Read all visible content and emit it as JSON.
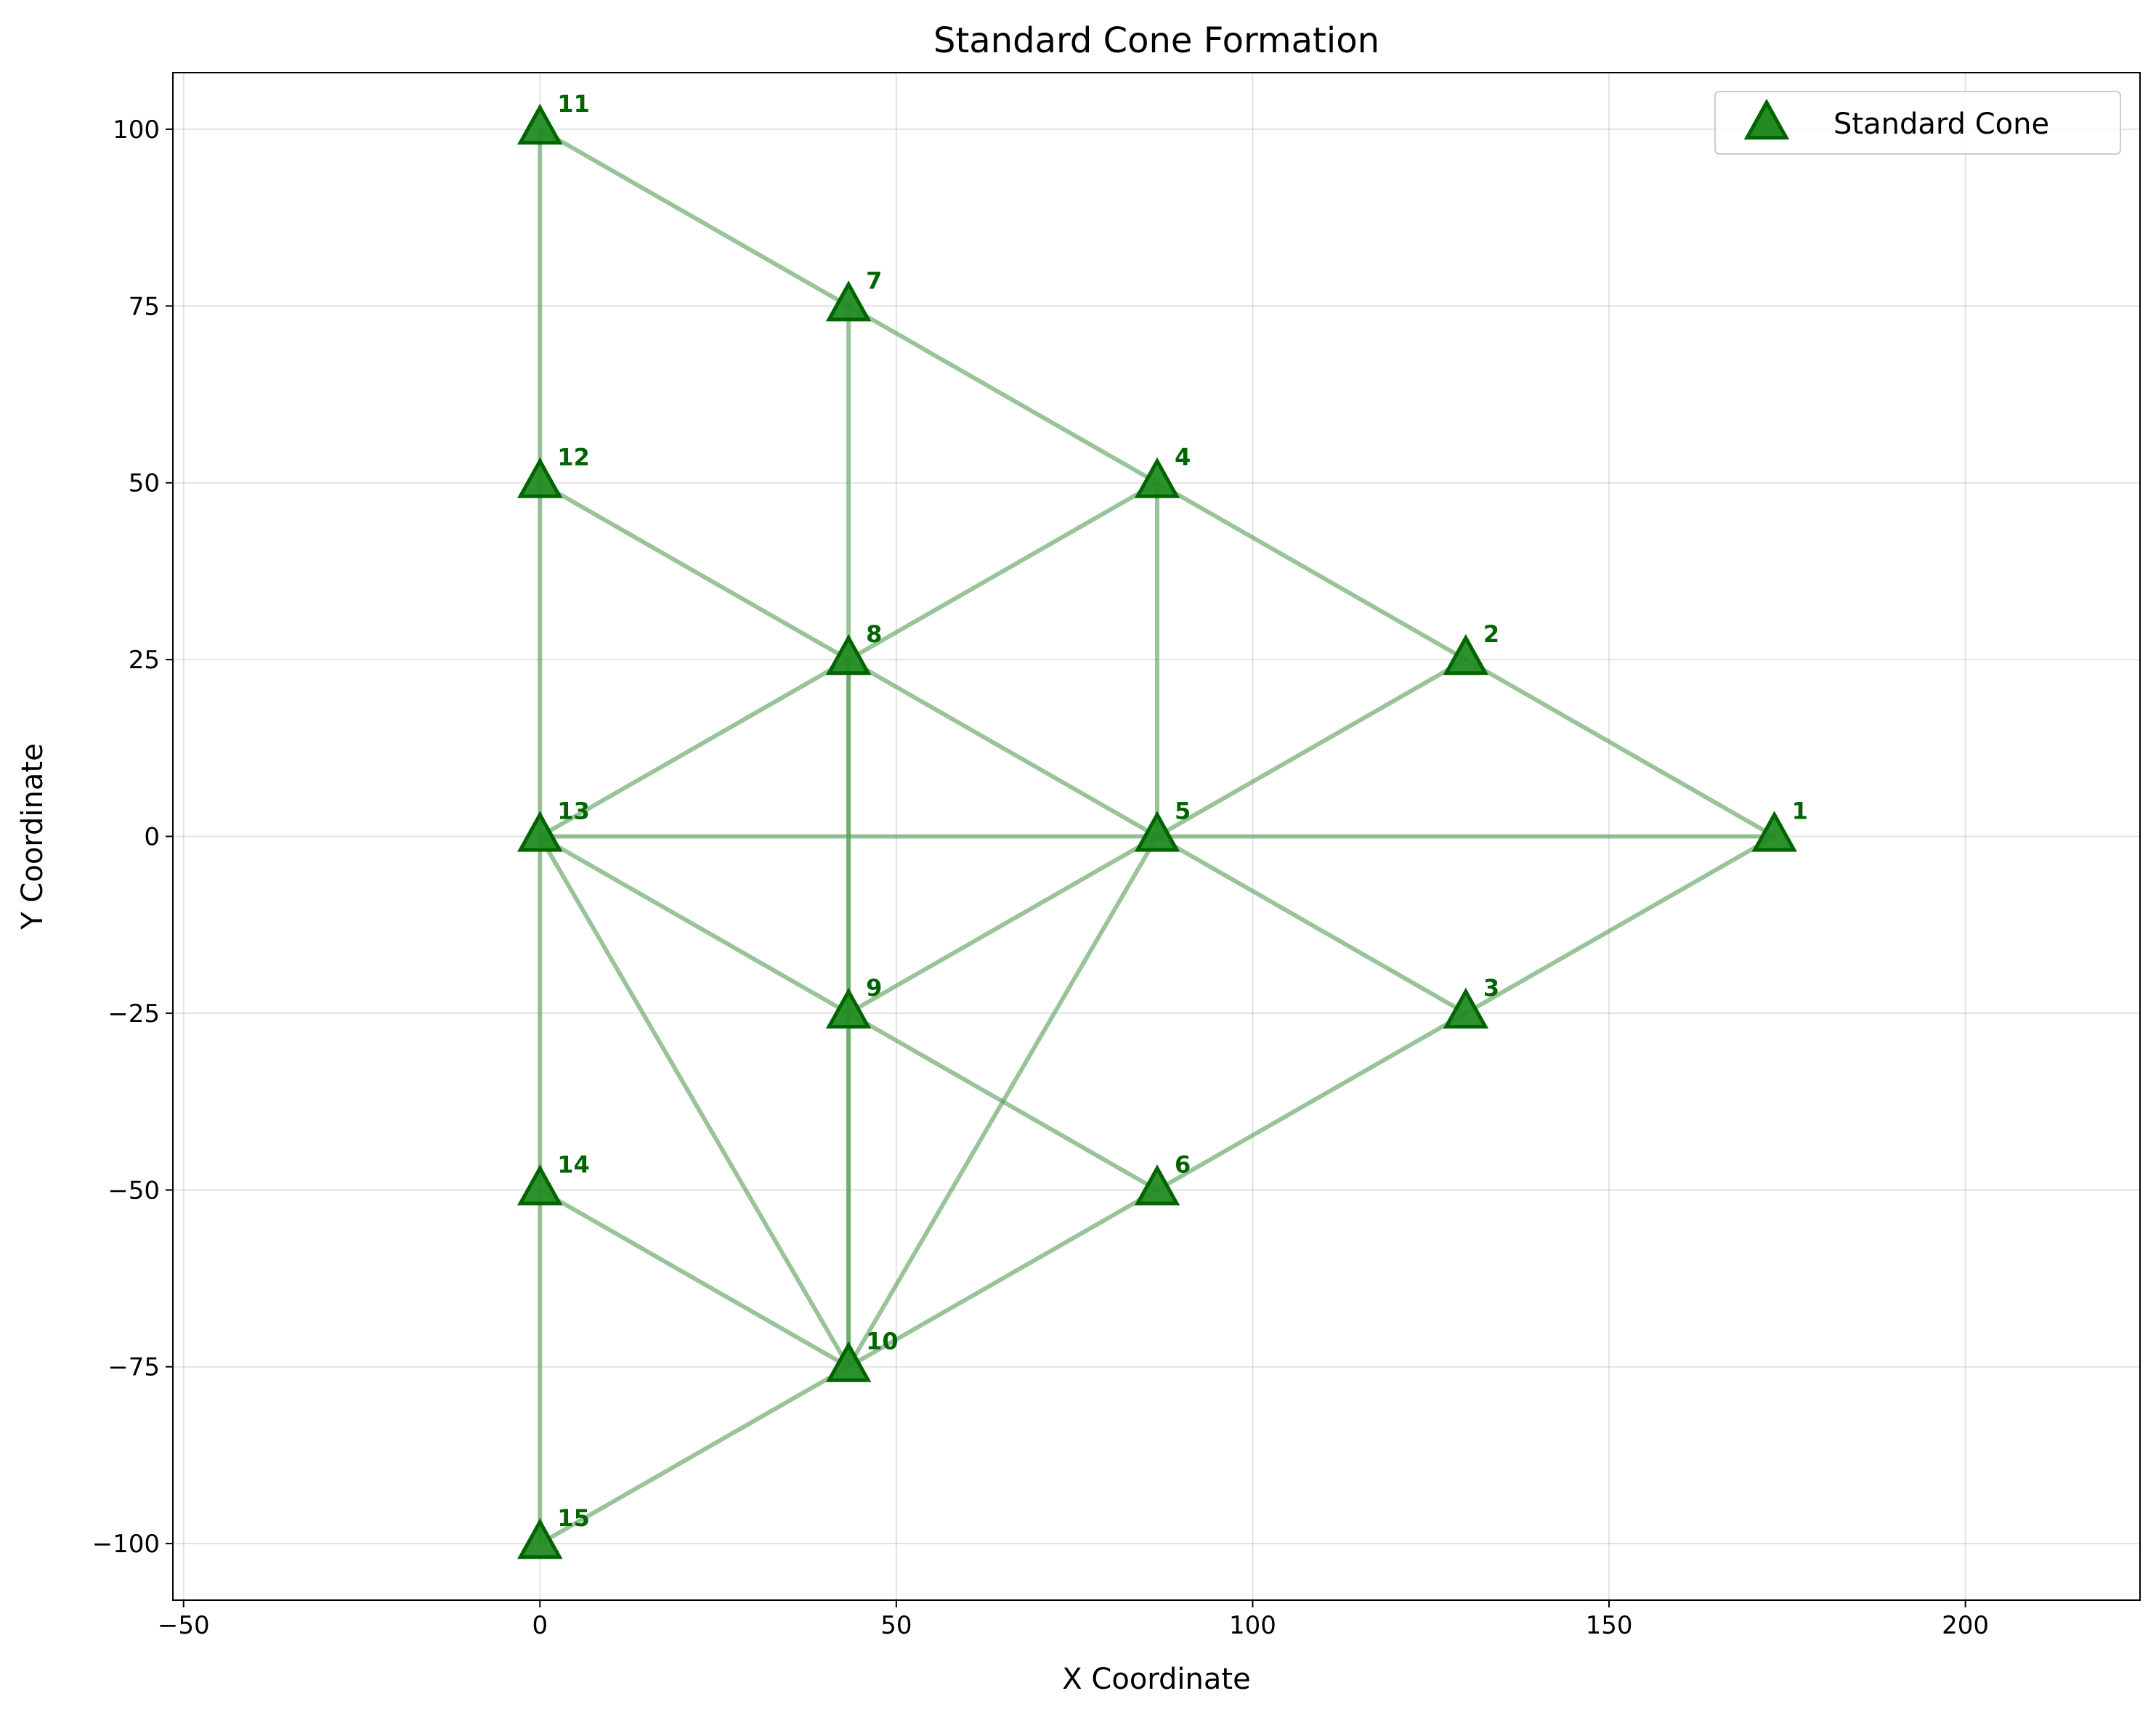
{
  "chart_data": {
    "type": "scatter",
    "title": "Standard Cone Formation",
    "xlabel": "X Coordinate",
    "ylabel": "Y Coordinate",
    "xlim": [
      -51.5,
      224.5
    ],
    "ylim": [
      -108,
      108
    ],
    "xticks": [
      -50,
      0,
      50,
      100,
      150,
      200
    ],
    "yticks": [
      -100,
      -75,
      -50,
      -25,
      0,
      25,
      50,
      75,
      100
    ],
    "xtick_labels": [
      "−50",
      "0",
      "50",
      "100",
      "150",
      "200"
    ],
    "ytick_labels": [
      "−100",
      "−75",
      "−50",
      "−25",
      "0",
      "25",
      "50",
      "75",
      "100"
    ],
    "grid": true,
    "legend": {
      "position": "top-right",
      "entries": [
        "Standard Cone"
      ]
    },
    "marker_color": "#228B22",
    "marker_edge_color": "#006400",
    "label_color": "#006400",
    "line_color": "#5a9e5a",
    "series": [
      {
        "name": "Standard Cone",
        "points": [
          {
            "id": "1",
            "x": 173.2,
            "y": 0
          },
          {
            "id": "2",
            "x": 129.9,
            "y": 25
          },
          {
            "id": "3",
            "x": 129.9,
            "y": -25
          },
          {
            "id": "4",
            "x": 86.6,
            "y": 50
          },
          {
            "id": "5",
            "x": 86.6,
            "y": 0
          },
          {
            "id": "6",
            "x": 86.6,
            "y": -50
          },
          {
            "id": "7",
            "x": 43.3,
            "y": 75
          },
          {
            "id": "8",
            "x": 43.3,
            "y": 25
          },
          {
            "id": "9",
            "x": 43.3,
            "y": -25
          },
          {
            "id": "10",
            "x": 43.3,
            "y": -75
          },
          {
            "id": "11",
            "x": 0,
            "y": 100
          },
          {
            "id": "12",
            "x": 0,
            "y": 50
          },
          {
            "id": "13",
            "x": 0,
            "y": 0
          },
          {
            "id": "14",
            "x": 0,
            "y": -50
          },
          {
            "id": "15",
            "x": 0,
            "y": -100
          }
        ]
      }
    ],
    "connections": [
      [
        "1",
        "2"
      ],
      [
        "1",
        "3"
      ],
      [
        "1",
        "5"
      ],
      [
        "2",
        "4"
      ],
      [
        "2",
        "5"
      ],
      [
        "3",
        "5"
      ],
      [
        "3",
        "6"
      ],
      [
        "4",
        "7"
      ],
      [
        "4",
        "8"
      ],
      [
        "4",
        "5"
      ],
      [
        "5",
        "8"
      ],
      [
        "5",
        "9"
      ],
      [
        "5",
        "10"
      ],
      [
        "5",
        "13"
      ],
      [
        "6",
        "9"
      ],
      [
        "6",
        "10"
      ],
      [
        "7",
        "11"
      ],
      [
        "7",
        "8"
      ],
      [
        "8",
        "12"
      ],
      [
        "8",
        "13"
      ],
      [
        "8",
        "9"
      ],
      [
        "8",
        "10"
      ],
      [
        "9",
        "13"
      ],
      [
        "9",
        "10"
      ],
      [
        "10",
        "14"
      ],
      [
        "10",
        "15"
      ],
      [
        "10",
        "13"
      ],
      [
        "11",
        "12"
      ],
      [
        "12",
        "13"
      ],
      [
        "13",
        "14"
      ],
      [
        "14",
        "15"
      ]
    ]
  }
}
